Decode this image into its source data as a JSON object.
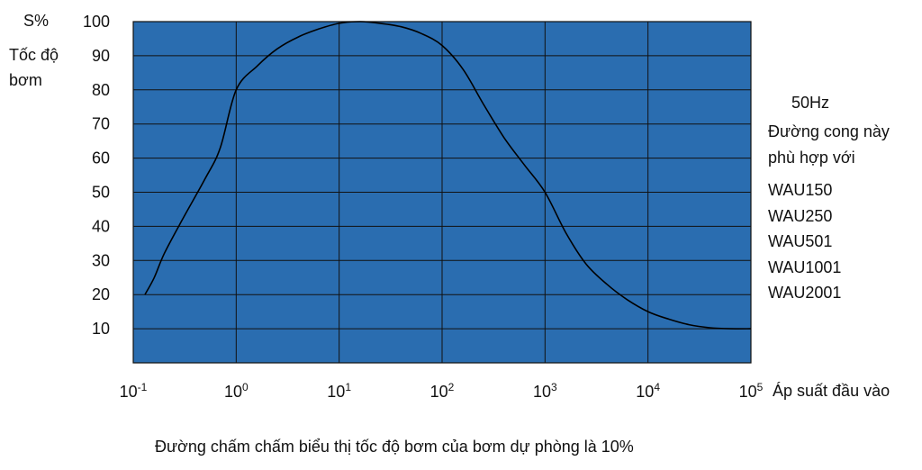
{
  "chart_data": {
    "type": "line",
    "ylabel_unit": "S%",
    "ylabel_lines": [
      "Tốc độ",
      "bơm"
    ],
    "xlabel": "Áp suất đầu vào",
    "x_scale": "log",
    "xlim": [
      0.1,
      100000
    ],
    "ylim": [
      0,
      100
    ],
    "x_ticks": [
      {
        "base": "10",
        "exp": "-1",
        "value": 0.1
      },
      {
        "base": "10",
        "exp": "0",
        "value": 1
      },
      {
        "base": "10",
        "exp": "1",
        "value": 10
      },
      {
        "base": "10",
        "exp": "2",
        "value": 100
      },
      {
        "base": "10",
        "exp": "3",
        "value": 1000
      },
      {
        "base": "10",
        "exp": "4",
        "value": 10000
      },
      {
        "base": "10",
        "exp": "5",
        "value": 100000
      }
    ],
    "y_ticks": [
      "10",
      "20",
      "30",
      "40",
      "50",
      "60",
      "70",
      "80",
      "90",
      "100"
    ],
    "grid": true,
    "background_color": "#2a6db0",
    "grid_color": "#111111",
    "line_color": "#000000",
    "series": [
      {
        "x": [
          0.13,
          0.16,
          0.2,
          0.3,
          0.5,
          0.7,
          1.0,
          1.6,
          2.5,
          4,
          6.3,
          10,
          16,
          25,
          40,
          63,
          100,
          160,
          250,
          400,
          630,
          1000,
          1600,
          2500,
          4000,
          6300,
          10000,
          16000,
          25000,
          40000,
          63000,
          100000
        ],
        "y": [
          20,
          25,
          32,
          42,
          54,
          63,
          80,
          87,
          92,
          95.5,
          97.8,
          99.5,
          100,
          99.5,
          98.5,
          96.5,
          93,
          86,
          76,
          66,
          58,
          50,
          38,
          29,
          23,
          18.5,
          15,
          12.8,
          11.2,
          10.3,
          10,
          10
        ]
      }
    ]
  },
  "legend": {
    "frequency": "50Hz",
    "description_line1": "Đường cong này",
    "description_line2": "phù hợp với",
    "models": [
      "WAU150",
      "WAU250",
      "WAU501",
      "WAU1001",
      "WAU2001"
    ]
  },
  "caption": "Đường chấm chấm biểu thị tốc độ bơm của bơm dự phòng là 10%"
}
